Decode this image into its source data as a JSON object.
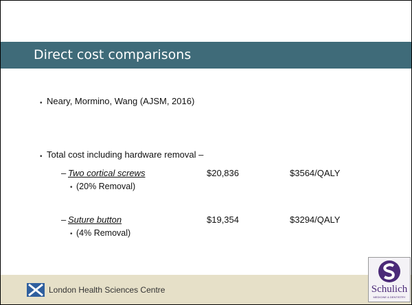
{
  "title": "Direct cost comparisons",
  "bullets": [
    {
      "text": "Neary, Mormino, Wang (AJSM, 2016)"
    },
    {
      "text": "Total cost including hardware removal –",
      "items": [
        {
          "name": "Two cortical screws",
          "cost": "$20,836",
          "qaly": "$3564/QALY",
          "note": "(20% Removal)"
        },
        {
          "name": "Suture button",
          "cost": "$19,354",
          "qaly": "$3294/QALY",
          "note": "(4% Removal)"
        }
      ]
    }
  ],
  "footer": {
    "organization": "London Health Sciences Centre",
    "logo": {
      "name": "Schulich",
      "subtitle": "MEDICINE & DENTISTRY"
    }
  }
}
